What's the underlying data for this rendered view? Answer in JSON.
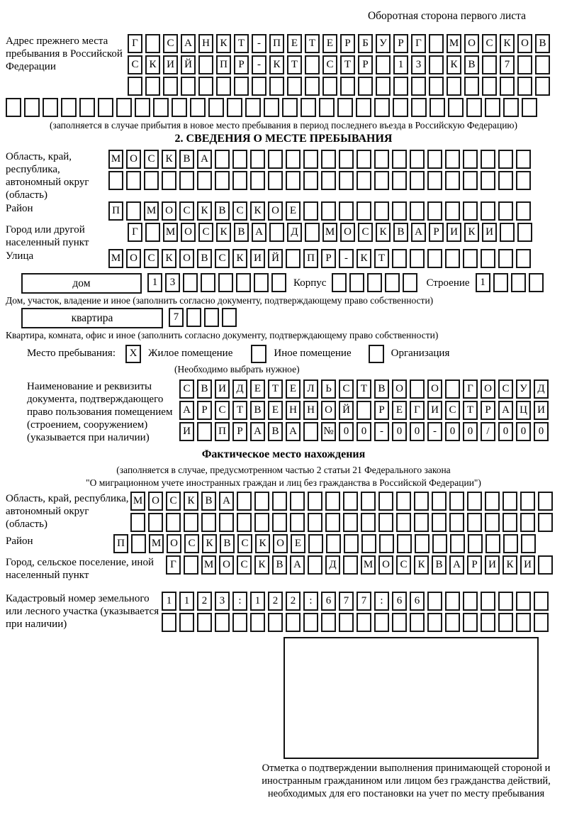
{
  "header": {
    "side_note": "Оборотная сторона первого листа"
  },
  "prev_address": {
    "label": "Адрес прежнего места пребывания в Российской Федерации",
    "rows": [
      {
        "text": "Г САНКТ-ПЕТЕРБУРГ МОСКОВ",
        "len": 24
      },
      {
        "text": "СКИЙ ПР-КТ СТР 13 КВ 7",
        "len": 24
      },
      {
        "text": "",
        "len": 24
      },
      {
        "text": "",
        "len": 29
      }
    ],
    "caption": "(заполняется в случае прибытия в новое место пребывания в период последнего въезда в Российскую Федерацию)"
  },
  "section2": {
    "title": "2. СВЕДЕНИЯ О МЕСТЕ ПРЕБЫВАНИЯ",
    "oblast": {
      "label": "Область, край, республика, автономный округ (область)",
      "rows": [
        {
          "text": "МОСКВА",
          "len": 24
        },
        {
          "text": "",
          "len": 24
        }
      ]
    },
    "raion": {
      "label": "Район",
      "row": {
        "text": "П МОСКВСКОЕ",
        "len": 24
      }
    },
    "gorod": {
      "label": "Город или другой населенный пункт",
      "row": {
        "text": "Г МОСКВА Д МОСКВАРИКИ",
        "len": 23
      }
    },
    "ulitsa": {
      "label": "Улица",
      "row": {
        "text": "МОСКОВСКИЙ ПР-КТ",
        "len": 24
      }
    },
    "dom": {
      "box_label": "дом",
      "number": {
        "text": "13",
        "len": 8
      },
      "korpus_label": "Корпус",
      "korpus": {
        "text": "",
        "len": 5
      },
      "stroenie_label": "Строение",
      "stroenie": {
        "text": "1",
        "len": 4
      },
      "caption": "Дом, участок, владение и иное (заполнить согласно документу, подтверждающему право собственности)"
    },
    "kvartira": {
      "box_label": "квартира",
      "number": {
        "text": "7",
        "len": 4
      },
      "caption": "Квартира, комната, офис и иное (заполнить согласно документу, подтверждающему право собственности)"
    },
    "mesto": {
      "label": "Место пребывания:",
      "options": [
        {
          "label": "Жилое помещение",
          "mark": "X"
        },
        {
          "label": "Иное помещение",
          "mark": ""
        },
        {
          "label": "Организация",
          "mark": ""
        }
      ],
      "caption": "(Необходимо выбрать нужное)"
    },
    "doc": {
      "label": "Наименование и реквизиты документа, подтверждающего право пользования помещением (строением, сооружением) (указывается при наличии)",
      "rows": [
        {
          "text": "СВИДЕТЕЛЬСТВО О ГОСУД",
          "len": 21
        },
        {
          "text": "АРСТВЕННОЙ РЕГИСТРАЦИ",
          "len": 21
        },
        {
          "text": "И ПРАВА №00-00-00/000",
          "len": 21
        }
      ]
    }
  },
  "fact": {
    "title": "Фактическое место нахождения",
    "caption_line1": "(заполняется в случае, предусмотренном частью 2 статьи 21 Федерального закона",
    "caption_line2": "\"О миграционном учете иностранных граждан и лиц без гражданства в Российской Федерации\")",
    "oblast": {
      "label": "Область, край, республика, автономный округ (область)",
      "rows": [
        {
          "text": "МОСКВА",
          "len": 24
        },
        {
          "text": "",
          "len": 24
        }
      ]
    },
    "raion": {
      "label": "Район",
      "row": {
        "text": "П МОСКВСКОЕ",
        "len": 24
      }
    },
    "gorod": {
      "label": "Город, сельское поселение, иной населенный пункт",
      "row": {
        "text": "Г МОСКВА Д МОСКВАРИКИ",
        "len": 22
      }
    },
    "kadastr": {
      "label": "Кадастровый номер земельного или лесного участка (указывается при наличии)",
      "rows": [
        {
          "text": "1123:122:677:66",
          "len": 22
        },
        {
          "text": "",
          "len": 22
        }
      ]
    },
    "stamp_caption": "Отметка о подтверждении выполнения принимающей стороной и иностранным гражданином или лицом без гражданства действий, необходимых для его постановки на учет по месту пребывания"
  }
}
